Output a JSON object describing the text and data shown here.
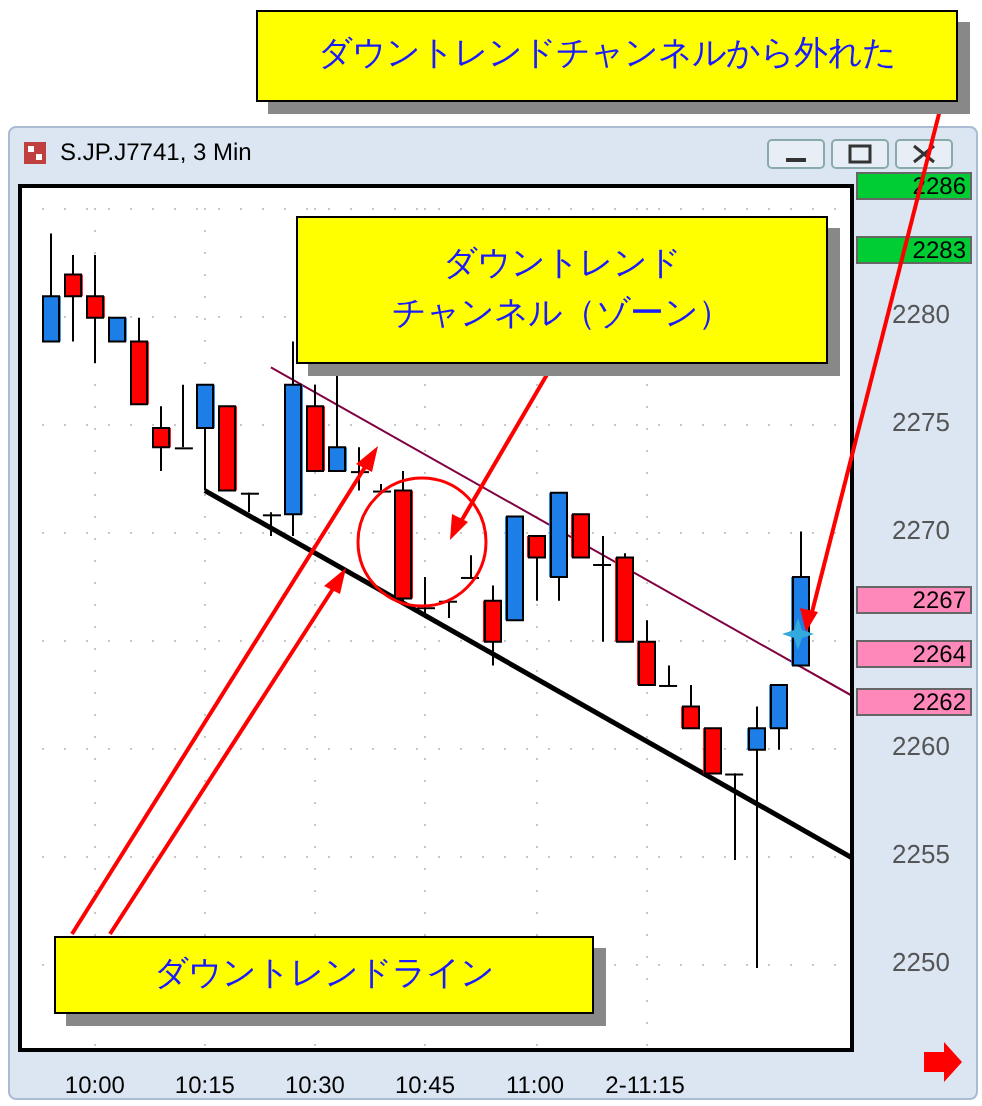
{
  "chart_data": {
    "type": "candlestick",
    "title": "S.JP.J7741, 3 Min",
    "x": [
      9.9,
      9.95,
      10.0,
      10.05,
      10.1,
      10.15,
      10.2,
      10.25,
      10.3,
      10.35,
      10.4,
      10.45,
      10.5,
      10.55,
      10.6,
      10.65,
      10.7,
      10.75,
      10.8,
      10.85,
      10.9,
      10.95,
      11.0,
      11.05,
      11.1,
      11.15,
      11.2,
      11.25,
      11.3,
      11.35,
      11.4,
      11.45,
      11.5,
      11.55,
      11.6
    ],
    "ohlc": [
      [
        2278.8,
        2283.8,
        2278.8,
        2280.9
      ],
      [
        2281.9,
        2282.8,
        2278.8,
        2280.9
      ],
      [
        2280.9,
        2282.8,
        2277.8,
        2279.9
      ],
      [
        2278.8,
        2279.9,
        2278.8,
        2279.9
      ],
      [
        2278.8,
        2279.9,
        2275.9,
        2275.9
      ],
      [
        2274.8,
        2275.8,
        2272.8,
        2273.9
      ],
      [
        2273.9,
        2276.8,
        2273.9,
        2273.9
      ],
      [
        2274.8,
        2276.8,
        2271.9,
        2276.8
      ],
      [
        2275.8,
        2275.8,
        2271.9,
        2271.9
      ],
      [
        2271.8,
        2271.8,
        2270.9,
        2271.8
      ],
      [
        2270.8,
        2270.9,
        2269.8,
        2270.8
      ],
      [
        2270.8,
        2278.8,
        2269.8,
        2276.8
      ],
      [
        2275.8,
        2276.8,
        2272.8,
        2272.8
      ],
      [
        2272.8,
        2277.3,
        2272.8,
        2273.9
      ],
      [
        2272.8,
        2273.9,
        2271.9,
        2272.8
      ],
      [
        2271.9,
        2272.2,
        2271.9,
        2271.9
      ],
      [
        2271.9,
        2272.8,
        2266.6,
        2266.9
      ],
      [
        2266.5,
        2267.9,
        2266.0,
        2266.5
      ],
      [
        2266.8,
        2266.8,
        2266.0,
        2266.8
      ],
      [
        2267.9,
        2268.9,
        2267.9,
        2267.9
      ],
      [
        2266.8,
        2267.5,
        2263.8,
        2264.9
      ],
      [
        2265.9,
        2270.7,
        2265.9,
        2270.7
      ],
      [
        2269.8,
        2269.8,
        2266.8,
        2268.8
      ],
      [
        2267.9,
        2271.8,
        2266.8,
        2271.8
      ],
      [
        2270.8,
        2270.8,
        2268.8,
        2268.8
      ],
      [
        2268.5,
        2269.8,
        2264.9,
        2268.5
      ],
      [
        2268.8,
        2269.0,
        2264.9,
        2264.9
      ],
      [
        2264.9,
        2265.9,
        2262.9,
        2262.9
      ],
      [
        2262.9,
        2263.8,
        2262.9,
        2262.9
      ],
      [
        2261.9,
        2262.9,
        2260.9,
        2260.9
      ],
      [
        2260.9,
        2260.9,
        2258.8,
        2258.8
      ],
      [
        2258.8,
        2258.8,
        2254.8,
        2258.8
      ],
      [
        2259.9,
        2261.9,
        2249.8,
        2260.9
      ],
      [
        2260.9,
        2262.9,
        2259.9,
        2262.9
      ],
      [
        2263.8,
        2270.0,
        2263.8,
        2267.9
      ]
    ],
    "colors": [
      "#1e7ee8",
      "#ff0000",
      "#ff0000",
      "#1e7ee8",
      "#ff0000",
      "#ff0000",
      "#000000",
      "#1e7ee8",
      "#ff0000",
      "#000000",
      "#000000",
      "#1e7ee8",
      "#ff0000",
      "#1e7ee8",
      "#000000",
      "#000000",
      "#ff0000",
      "#000000",
      "#000000",
      "#000000",
      "#ff0000",
      "#1e7ee8",
      "#ff0000",
      "#1e7ee8",
      "#ff0000",
      "#000000",
      "#ff0000",
      "#ff0000",
      "#000000",
      "#ff0000",
      "#ff0000",
      "#000000",
      "#1e7ee8",
      "#1e7ee8",
      "#1e7ee8"
    ],
    "series": [
      {
        "type": "line",
        "color": "#000000",
        "x": [
          10.25,
          11.72
        ],
        "values": [
          2271.9,
          2254.9
        ]
      },
      {
        "type": "line",
        "color": "#800040",
        "x": [
          10.4,
          11.72
        ],
        "values": [
          2277.6,
          2262.4
        ]
      }
    ],
    "xlim": [
      9.83,
      11.72
    ],
    "xticks": [
      {
        "value": 10,
        "label": "10:00"
      },
      {
        "value": 10.25,
        "label": "10:15"
      },
      {
        "value": 10.5,
        "label": "10:30"
      },
      {
        "value": 10.75,
        "label": "10:45"
      },
      {
        "value": 11,
        "label": "11:00"
      },
      {
        "value": 11.25,
        "label": "2-11:15"
      }
    ],
    "ylim": [
      2246,
      2286
    ],
    "yticks": [
      2250,
      2255,
      2260,
      {
        "value": 2265,
        "label": null
      },
      2270,
      2275,
      2280,
      {
        "value": 2285,
        "label": null
      }
    ],
    "annotations": [
      "ダウントレンド",
      "チャンネル（ゾーン）",
      "ダウントレンドライン",
      "ダウントレンドチャンネルから外れた",
      "2286",
      "2283",
      "2267",
      "2264",
      "2262"
    ],
    "grid": true,
    "legend": false,
    "marker": "none",
    "line_style": "solid"
  }
}
